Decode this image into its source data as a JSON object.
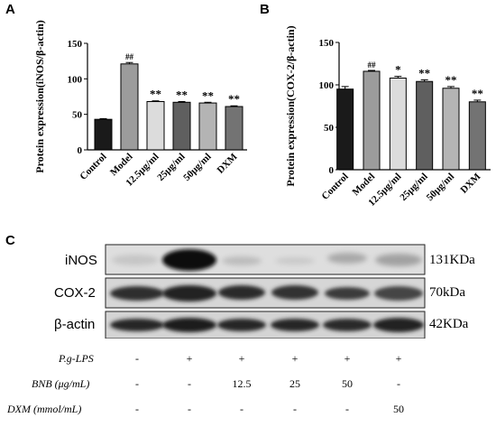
{
  "panel_letters": {
    "a": "A",
    "b": "B",
    "c": "C"
  },
  "chart_data": [
    {
      "type": "bar",
      "ylabel": "Protein expression(iNOS/β-actin)",
      "ylim": [
        0,
        150
      ],
      "yticks": [
        0,
        50,
        100,
        150
      ],
      "categories": [
        "Control",
        "Model",
        "12.5μg/ml",
        "25μg/ml",
        "50μg/ml",
        "DXM"
      ],
      "values": [
        43,
        121,
        68,
        67,
        66,
        61
      ],
      "errors": [
        1,
        2,
        1,
        1,
        1,
        1
      ],
      "significance": [
        "",
        "##",
        "**",
        "**",
        "**",
        "**"
      ],
      "colors": [
        "#1a1a1a",
        "#9c9c9c",
        "#dcdcdc",
        "#5f5f5f",
        "#b4b4b4",
        "#737373"
      ]
    },
    {
      "type": "bar",
      "ylabel": "Protein expression(COX-2/β-actin)",
      "ylim": [
        0,
        150
      ],
      "yticks": [
        0,
        50,
        100,
        150
      ],
      "categories": [
        "Control",
        "Model",
        "12.5μg/ml",
        "25μg/ml",
        "50μg/ml",
        "DXM"
      ],
      "values": [
        95,
        116,
        108,
        104,
        96,
        80
      ],
      "errors": [
        3,
        1,
        2,
        2,
        2,
        2
      ],
      "significance": [
        "",
        "##",
        "*",
        "**",
        "**",
        "**"
      ],
      "colors": [
        "#1a1a1a",
        "#9c9c9c",
        "#dcdcdc",
        "#5f5f5f",
        "#b4b4b4",
        "#737373"
      ]
    }
  ],
  "blot": {
    "rows": [
      {
        "label": "iNOS",
        "size": "131KDa"
      },
      {
        "label": "COX-2",
        "size": "70kDa"
      },
      {
        "label": "β-actin",
        "size": "42KDa"
      }
    ]
  },
  "conditions": {
    "rows": [
      {
        "label": "P.g-LPS",
        "values": [
          "-",
          "+",
          "+",
          "+",
          "+",
          "+"
        ]
      },
      {
        "label": "BNB (μg/mL)",
        "values": [
          "-",
          "-",
          "12.5",
          "25",
          "50",
          "-"
        ]
      },
      {
        "label": "DXM (mmol/mL)",
        "values": [
          "-",
          "-",
          "-",
          "-",
          "-",
          "50"
        ]
      }
    ]
  }
}
